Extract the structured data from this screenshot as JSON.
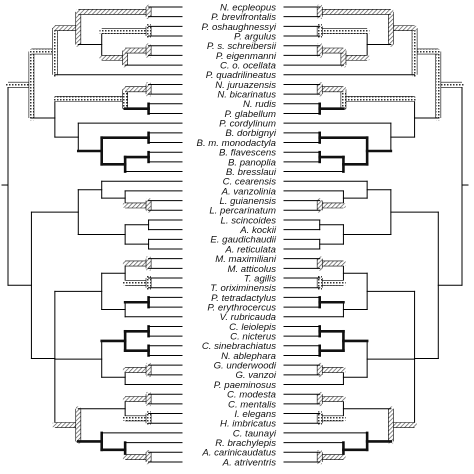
{
  "figure": {
    "taxa": [
      "N. ecpleopus",
      "P. brevifrontalis",
      "P. oshaughnessyi",
      "P. argulus",
      "P. s. schreibersii",
      "P. eigenmanni",
      "C. o. ocellata",
      "P. quadrilineatus",
      "N. juruazensis",
      "N. bicarinatus",
      "N. rudis",
      "P. glabellum",
      "P. cordylinum",
      "B. dorbignyi",
      "B. m. monodactyla",
      "B. flavescens",
      "B. panoplia",
      "B. bresslaui",
      "C. cearensis",
      "A. vanzolinia",
      "L. guianensis",
      "L. percarinatum",
      "L. scincoides",
      "A. kockii",
      "E. gaudichaudii",
      "A. reticulata",
      "M. maximiliani",
      "M. atticolus",
      "T. agilis",
      "T. oriximinensis",
      "P. tetradactylus",
      "P. erythrocercus",
      "V. rubricauda",
      "C. leiolepis",
      "C. nicterus",
      "C. sinebrachiatus",
      "N. ablephara",
      "G. underwoodi",
      "G. vanzoi",
      "P. paeminosus",
      "C. modesta",
      "C. mentalis",
      "I. elegans",
      "H. imbricatus",
      "C. taunayi",
      "R. brachylepis",
      "A. carinicaudatus",
      "A. atriventris"
    ],
    "colors": {
      "line": "#000000",
      "dark_branch": "#2a2a2a",
      "hatched": "#777777",
      "background": "#ffffff"
    },
    "branch_styles": [
      "plain",
      "bold",
      "hatched",
      "dotted"
    ]
  }
}
